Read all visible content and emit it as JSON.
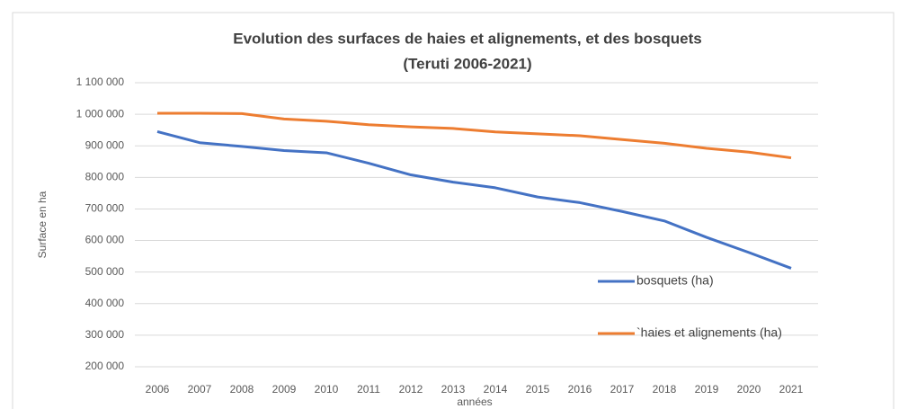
{
  "chart_data": {
    "type": "line",
    "title": [
      "Evolution des surfaces de haies  et  alignements, et des bosquets",
      "(Teruti 2006-2021)"
    ],
    "y_label": "Surface en ha",
    "x_label": "années",
    "categories": [
      "2006",
      "2007",
      "2008",
      "2009",
      "2010",
      "2011",
      "2012",
      "2013",
      "2014",
      "2015",
      "2016",
      "2017",
      "2018",
      "2019",
      "2020",
      "2021"
    ],
    "series": [
      {
        "name": "bosquets (ha)",
        "color": "#4472c4",
        "values": [
          945000,
          910000,
          898000,
          885000,
          878000,
          845000,
          808000,
          785000,
          767000,
          738000,
          720000,
          692000,
          662000,
          610000,
          562000,
          512000
        ]
      },
      {
        "name": "`haies et alignements (ha)",
        "color": "#ed7d31",
        "values": [
          1003000,
          1003000,
          1002000,
          985000,
          978000,
          967000,
          960000,
          955000,
          944000,
          938000,
          932000,
          920000,
          908000,
          892000,
          880000,
          862000
        ]
      }
    ],
    "ylim": [
      200000,
      1100000
    ],
    "yticks": [
      {
        "value": 200000,
        "label": "200 000"
      },
      {
        "value": 300000,
        "label": "300 000"
      },
      {
        "value": 400000,
        "label": "400 000"
      },
      {
        "value": 500000,
        "label": "500 000"
      },
      {
        "value": 600000,
        "label": "600 000"
      },
      {
        "value": 700000,
        "label": "700 000"
      },
      {
        "value": 800000,
        "label": "800 000"
      },
      {
        "value": 900000,
        "label": "900 000"
      },
      {
        "value": 1000000,
        "label": "1 000 000"
      },
      {
        "value": 1100000,
        "label": "1 100 000"
      }
    ],
    "grid": true,
    "legend": "right"
  }
}
